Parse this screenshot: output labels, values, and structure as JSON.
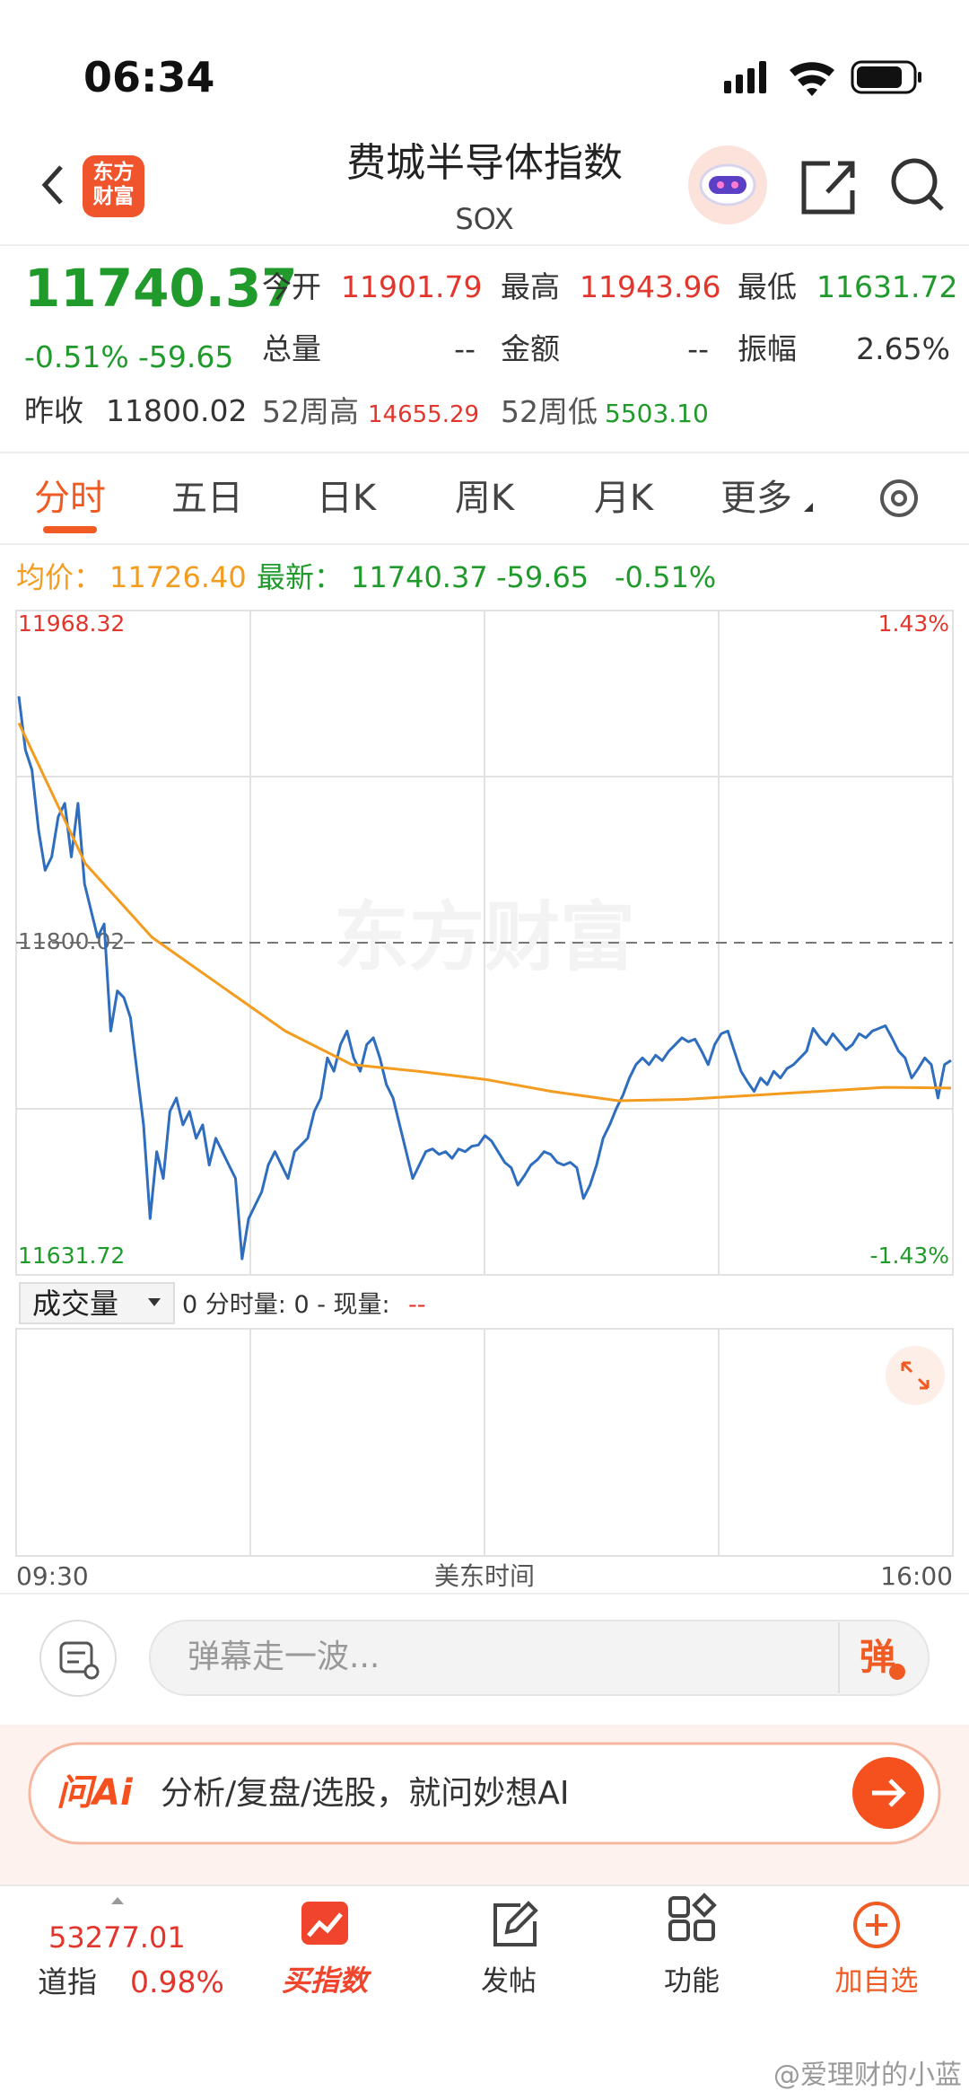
{
  "status_bar": {
    "time": "06:34"
  },
  "header": {
    "logo_lines": [
      "东方",
      "财富"
    ],
    "title": "费城半导体指数",
    "subtitle": "SOX"
  },
  "quote": {
    "price": "11740.37",
    "change_pct": "-0.51%",
    "change": "-59.65",
    "prev_close_label": "昨收",
    "prev_close": "11800.02",
    "fields": [
      {
        "label": "今开",
        "value": "11901.79"
      },
      {
        "label": "最高",
        "value": "11943.96"
      },
      {
        "label": "最低",
        "value": "11631.72"
      },
      {
        "label": "总量",
        "value": "--"
      },
      {
        "label": "金额",
        "value": "--"
      },
      {
        "label": "振幅",
        "value": "2.65%"
      },
      {
        "label": "52周高",
        "value": "14655.29"
      },
      {
        "label": "52周低",
        "value": "5503.10"
      }
    ]
  },
  "tabs": [
    "分时",
    "五日",
    "日K",
    "周K",
    "月K",
    "更多"
  ],
  "chart_data": {
    "type": "line",
    "legend": {
      "avg": "11726.40",
      "latest": "11740.37",
      "change": "-59.65",
      "change_pct": "-0.51%"
    },
    "watermark": "东方财富",
    "x_labels": [
      "09:30",
      "16:00"
    ],
    "x_title": "美东时间",
    "ylim": [
      11631.72,
      11968.32
    ],
    "yticks": [
      11631.72,
      11800.02,
      11968.32
    ],
    "y2lim": [
      -1.43,
      1.43
    ],
    "y2ticks": [
      {
        "value": -1.43,
        "label": "-1.43%"
      },
      {
        "value": 1.43,
        "label": "1.43%"
      }
    ],
    "series": [
      {
        "name": "均价：",
        "color": "#f39c1f",
        "values": [
          11911.32,
          11840.06,
          11802.74,
          11778.99,
          11755.24,
          11738.27,
          11734.88,
          11730.81,
          11724.7,
          11719.95,
          11720.63,
          11722.67,
          11724.7,
          11726.74,
          11726.4
        ]
      },
      {
        "name": "最新：",
        "color": "#2f6dbf",
        "values": [
          11924.89,
          11897.75,
          11887.57,
          11857.03,
          11836.67,
          11843.46,
          11863.82,
          11870.6,
          11843.46,
          11870.6,
          11829.89,
          11816.31,
          11802.74,
          11809.53,
          11755.24,
          11775.6,
          11772.2,
          11762.03,
          11734.88,
          11707.74,
          11660.24,
          11694.17,
          11680.59,
          11714.52,
          11721.31,
          11707.74,
          11714.52,
          11700.95,
          11707.74,
          11687.38,
          11700.95,
          11694.17,
          11687.38,
          11680.59,
          11639.88,
          11660.24,
          11667.02,
          11673.81,
          11687.38,
          11694.17,
          11687.38,
          11680.59,
          11694.17,
          11697.56,
          11700.95,
          11714.52,
          11721.31,
          11741.67,
          11734.88,
          11748.45,
          11755.24,
          11741.67,
          11734.88,
          11748.45,
          11751.85,
          11741.67,
          11728.1,
          11721.31,
          11707.74,
          11694.17,
          11680.59,
          11687.38,
          11694.17,
          11695.52,
          11692.81,
          11694.17,
          11690.77,
          11695.52,
          11694.17,
          11696.88,
          11697.56,
          11702.31,
          11699.59,
          11694.17,
          11688.74,
          11686.02,
          11677.2,
          11681.95,
          11687.38,
          11690.09,
          11694.17,
          11692.81,
          11688.74,
          11687.38,
          11688.74,
          11686.02,
          11670.41,
          11677.2,
          11687.38,
          11700.95,
          11707.74,
          11715.88,
          11722.67,
          11731.49,
          11738.27,
          11741.67,
          11738.27,
          11743.02,
          11740.31,
          11745.06,
          11748.45,
          11751.85,
          11749.81,
          11751.17,
          11745.06,
          11738.27,
          11748.45,
          11753.88,
          11755.24,
          11745.06,
          11734.88,
          11729.45,
          11724.7,
          11731.49,
          11728.1,
          11734.88,
          11731.49,
          11736.24,
          11738.27,
          11741.67,
          11745.06,
          11756.6,
          11751.85,
          11748.45,
          11753.88,
          11749.81,
          11745.74,
          11748.45,
          11753.88,
          11751.85,
          11755.24,
          11756.6,
          11757.95,
          11751.85,
          11745.06,
          11741.67,
          11731.49,
          11736.24,
          11741.67,
          11738.27,
          11721.31,
          11738.27,
          11740.37
        ]
      }
    ]
  },
  "volume": {
    "selector": "成交量",
    "readout": "0 分时量: 0 - 现量:",
    "readout_value": "--"
  },
  "comment": {
    "placeholder": "弹幕走一波...",
    "button": "弹"
  },
  "ai": {
    "badge": "问Ai",
    "prompt": "分析/复盘/选股，就问妙想AI"
  },
  "nav": {
    "index_value": "53277.01",
    "index_name": "道指",
    "index_change": "0.98%",
    "items": [
      "买指数",
      "发帖",
      "功能",
      "加自选"
    ]
  },
  "credit": "@爱理财的小蓝"
}
